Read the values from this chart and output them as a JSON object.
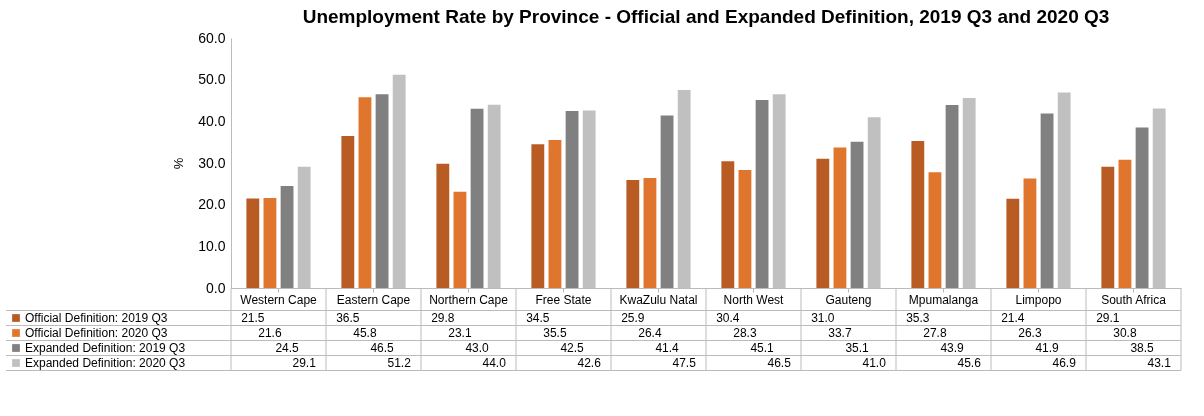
{
  "chart_data": {
    "type": "bar",
    "title": "Unemployment Rate by Province - Official and Expanded Definition, 2019 Q3 and 2020 Q3",
    "ylabel": "%",
    "categories": [
      "Western Cape",
      "Eastern Cape",
      "Northern Cape",
      "Free State",
      "KwaZulu Natal",
      "North West",
      "Gauteng",
      "Mpumalanga",
      "Limpopo",
      "South Africa"
    ],
    "series": [
      {
        "name": "Official Definition: 2019 Q3",
        "color": "#b85c24",
        "values": [
          21.5,
          36.5,
          29.8,
          34.5,
          25.9,
          30.4,
          31.0,
          35.3,
          21.4,
          29.1
        ],
        "value_labels": [
          "21.5",
          "36.5",
          "29.8",
          "34.5",
          "25.9",
          "30.4",
          "31.0",
          "35.3",
          "21.4",
          "29.1"
        ]
      },
      {
        "name": "Official Definition: 2020 Q3",
        "color": "#e0762e",
        "values": [
          21.6,
          45.8,
          23.1,
          35.5,
          26.4,
          28.3,
          33.7,
          27.8,
          26.3,
          30.8
        ],
        "value_labels": [
          "21.6",
          "45.8",
          "23.1",
          "35.5",
          "26.4",
          "28.3",
          "33.7",
          "27.8",
          "26.3",
          "30.8"
        ]
      },
      {
        "name": "Expanded Definition: 2019 Q3",
        "color": "#808080",
        "values": [
          24.5,
          46.5,
          43.0,
          42.5,
          41.4,
          45.1,
          35.1,
          43.9,
          41.9,
          38.5
        ],
        "value_labels": [
          "24.5",
          "46.5",
          "43.0",
          "42.5",
          "41.4",
          "45.1",
          "35.1",
          "43.9",
          "41.9",
          "38.5"
        ]
      },
      {
        "name": "Expanded Definition: 2020 Q3",
        "color": "#c0c0c0",
        "values": [
          29.1,
          51.2,
          44.0,
          42.6,
          47.5,
          46.5,
          41.0,
          45.6,
          46.9,
          43.1
        ],
        "value_labels": [
          "29.1",
          "51.2",
          "44.0",
          "42.6",
          "47.5",
          "46.5",
          "41.0",
          "45.6",
          "46.9",
          "43.1"
        ]
      }
    ],
    "ylim": [
      0,
      60
    ],
    "yticks": [
      {
        "value": 0,
        "label": "0.0"
      },
      {
        "value": 10,
        "label": "10.0"
      },
      {
        "value": 20,
        "label": "20.0"
      },
      {
        "value": 30,
        "label": "30.0"
      },
      {
        "value": 40,
        "label": "40.0"
      },
      {
        "value": 50,
        "label": "50.0"
      },
      {
        "value": 60,
        "label": "60.0"
      }
    ],
    "grid": false,
    "legend": "bottom"
  }
}
